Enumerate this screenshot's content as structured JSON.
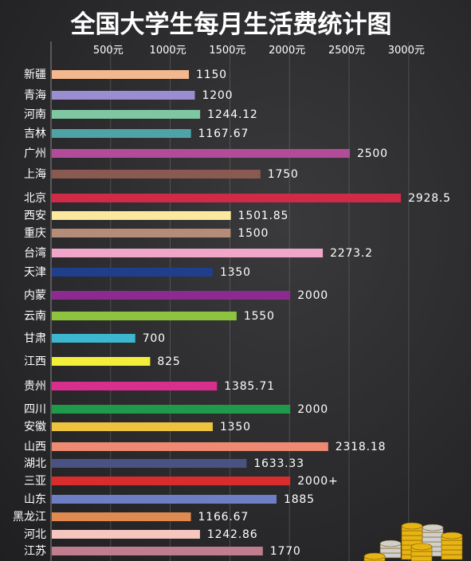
{
  "chart_data": {
    "type": "bar",
    "orientation": "horizontal",
    "title": "全国大学生每月生活费统计图",
    "xlabel": "",
    "ylabel": "",
    "xlim": [
      0,
      3100
    ],
    "x_ticks": [
      {
        "value": 500,
        "label": "500元"
      },
      {
        "value": 1000,
        "label": "1000元"
      },
      {
        "value": 1500,
        "label": "1500元"
      },
      {
        "value": 2000,
        "label": "2000元"
      },
      {
        "value": 2500,
        "label": "2500元"
      },
      {
        "value": 3000,
        "label": "3000元"
      }
    ],
    "grid": true,
    "legend": "none",
    "bars": [
      {
        "category": "新疆",
        "value": 1150,
        "label": "1150",
        "color": "#f4b88e"
      },
      {
        "category": "青海",
        "value": 1200,
        "label": "1200",
        "color": "#9a8dd0"
      },
      {
        "category": "河南",
        "value": 1244.12,
        "label": "1244.12",
        "color": "#7fc7a2"
      },
      {
        "category": "吉林",
        "value": 1167.67,
        "label": "1167.67",
        "color": "#4fa3a7"
      },
      {
        "category": "广州",
        "value": 2500,
        "label": "2500",
        "color": "#b24c98"
      },
      {
        "category": "上海",
        "value": 1750,
        "label": "1750",
        "color": "#8a5a52"
      },
      {
        "category": "北京",
        "value": 2928.5,
        "label": "2928.5",
        "color": "#d12a47"
      },
      {
        "category": "西安",
        "value": 1501.85,
        "label": "1501.85",
        "color": "#fbe79d"
      },
      {
        "category": "重庆",
        "value": 1500,
        "label": "1500",
        "color": "#b48c78"
      },
      {
        "category": "台湾",
        "value": 2273.2,
        "label": "2273.2",
        "color": "#f0a6c9"
      },
      {
        "category": "天津",
        "value": 1350,
        "label": "1350",
        "color": "#1f3f8c"
      },
      {
        "category": "内蒙",
        "value": 2000,
        "label": "2000",
        "color": "#8c2a8f"
      },
      {
        "category": "云南",
        "value": 1550,
        "label": "1550",
        "color": "#8dc33f"
      },
      {
        "category": "甘肃",
        "value": 700,
        "label": "700",
        "color": "#3db6cf"
      },
      {
        "category": "江西",
        "value": 825,
        "label": "825",
        "color": "#f3ee3a"
      },
      {
        "category": "贵州",
        "value": 1385.71,
        "label": "1385.71",
        "color": "#d82f8e"
      },
      {
        "category": "四川",
        "value": 2000,
        "label": "2000",
        "color": "#1f9a4a"
      },
      {
        "category": "安徽",
        "value": 1350,
        "label": "1350",
        "color": "#ecc23e"
      },
      {
        "category": "山西",
        "value": 2318.18,
        "label": "2318.18",
        "color": "#ee8a71"
      },
      {
        "category": "湖北",
        "value": 1633.33,
        "label": "1633.33",
        "color": "#4a5282"
      },
      {
        "category": "三亚",
        "value": 2000,
        "label": "2000+",
        "color": "#d92c2c"
      },
      {
        "category": "山东",
        "value": 1885,
        "label": "1885",
        "color": "#6d7ec4"
      },
      {
        "category": "黑龙江",
        "value": 1166.67,
        "label": "1166.67",
        "color": "#e08a50"
      },
      {
        "category": "河北",
        "value": 1242.86,
        "label": "1242.86",
        "color": "#f6c5c0"
      },
      {
        "category": "江苏",
        "value": 1770,
        "label": "1770",
        "color": "#c07d8d"
      }
    ]
  },
  "colors": {
    "background": "#2e2e30",
    "text": "#ffffff",
    "grid": "#8a8a8a",
    "coin_gold": "#e8b413",
    "coin_silver": "#cfcfcf"
  },
  "decoration": {
    "icon": "coin-stack-icon"
  }
}
